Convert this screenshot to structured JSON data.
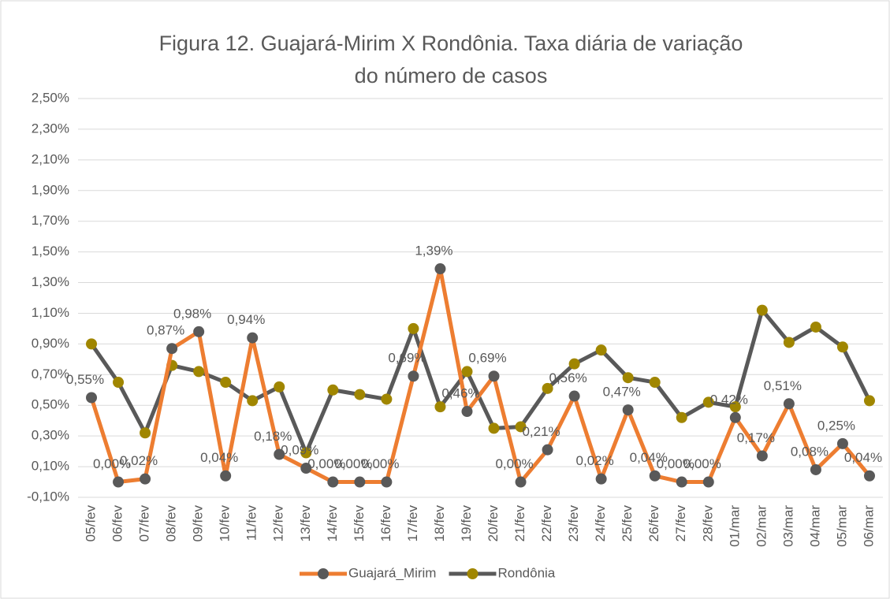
{
  "chart_data": {
    "type": "line",
    "title": [
      "Figura 12. Guajará-Mirim X Rondônia. Taxa diária de variação",
      "do número de casos"
    ],
    "categories": [
      "05/fev",
      "06/fev",
      "07/fev",
      "08/fev",
      "09/fev",
      "10/fev",
      "11/fev",
      "12/fev",
      "13/fev",
      "14/fev",
      "15/fev",
      "16/fev",
      "17/fev",
      "18/fev",
      "19/fev",
      "20/fev",
      "21/fev",
      "22/fev",
      "23/fev",
      "24/fev",
      "25/fev",
      "26/fev",
      "27/fev",
      "28/fev",
      "01/mar",
      "02/mar",
      "03/mar",
      "04/mar",
      "05/mar",
      "06/mar"
    ],
    "series": [
      {
        "name": "Guajará_Mirim",
        "color": "#ED7D31",
        "marker_color": "#595959",
        "values": [
          0.55,
          0.0,
          0.02,
          0.87,
          0.98,
          0.04,
          0.94,
          0.18,
          0.09,
          0.0,
          0.0,
          0.0,
          0.69,
          1.39,
          0.46,
          0.69,
          0.0,
          0.21,
          0.56,
          0.02,
          0.47,
          0.04,
          0.0,
          0.0,
          0.42,
          0.17,
          0.51,
          0.08,
          0.25,
          0.04
        ],
        "value_labels": [
          "0,55%",
          "0,00%",
          "0,02%",
          "0,87%",
          "0,98%",
          "0,04%",
          "0,94%",
          "0,18%",
          "0,09%",
          "0,00%",
          "0,00%",
          "0,00%",
          "0,69%",
          "1,39%",
          "0,46%",
          "0,69%",
          "0,00%",
          "0,21%",
          "0,56%",
          "0,02%",
          "0,47%",
          "0,04%",
          "0,00%",
          "0,00%",
          "0,42%",
          "0,17%",
          "0,51%",
          "0,08%",
          "0,25%",
          "0,04%"
        ]
      },
      {
        "name": "Rondônia",
        "color": "#595959",
        "marker_color": "#A08600",
        "values": [
          0.9,
          0.65,
          0.32,
          0.76,
          0.72,
          0.65,
          0.53,
          0.62,
          0.19,
          0.6,
          0.57,
          0.54,
          1.0,
          0.49,
          0.72,
          0.35,
          0.36,
          0.61,
          0.77,
          0.86,
          0.68,
          0.65,
          0.42,
          0.52,
          0.49,
          1.12,
          0.91,
          1.01,
          0.88,
          0.53
        ]
      }
    ],
    "ylim": [
      -0.1,
      2.5
    ],
    "yticks": [
      {
        "value": -0.1,
        "label": "-0,10%"
      },
      {
        "value": 0.1,
        "label": "0,10%"
      },
      {
        "value": 0.3,
        "label": "0,30%"
      },
      {
        "value": 0.5,
        "label": "0,50%"
      },
      {
        "value": 0.7,
        "label": "0,70%"
      },
      {
        "value": 0.9,
        "label": "0,90%"
      },
      {
        "value": 1.1,
        "label": "1,10%"
      },
      {
        "value": 1.3,
        "label": "1,30%"
      },
      {
        "value": 1.5,
        "label": "1,50%"
      },
      {
        "value": 1.7,
        "label": "1,70%"
      },
      {
        "value": 1.9,
        "label": "1,90%"
      },
      {
        "value": 2.1,
        "label": "2,10%"
      },
      {
        "value": 2.3,
        "label": "2,30%"
      },
      {
        "value": 2.5,
        "label": "2,50%"
      }
    ],
    "grid": true,
    "legend": "bottom"
  }
}
